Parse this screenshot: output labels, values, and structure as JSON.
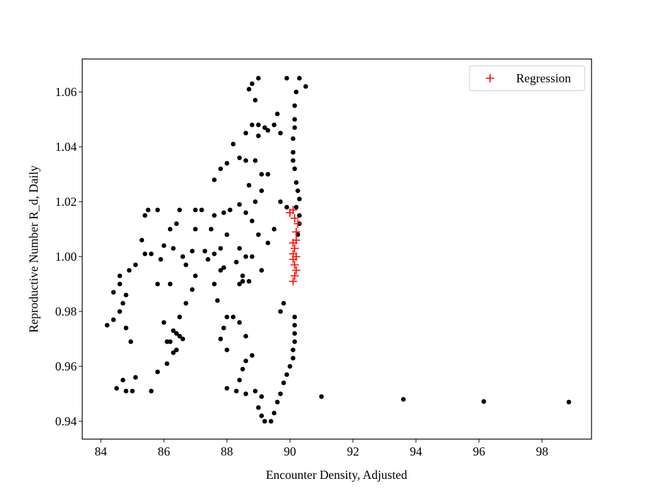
{
  "chart_data": {
    "type": "scatter",
    "x_label": "Encounter Density, Adjusted",
    "y_label": "Reproductive Number R_d, Daily",
    "xlim": [
      83.41,
      99.57
    ],
    "ylim": [
      0.9335,
      1.072
    ],
    "xticks": [
      84,
      86,
      88,
      90,
      92,
      94,
      96,
      98
    ],
    "yticks": [
      0.94,
      0.96,
      0.98,
      {
        "value": 1,
        "label": "1.00"
      },
      1.02,
      1.04,
      1.06
    ],
    "legend": "upper right",
    "series": [
      {
        "color": "#000000",
        "marker": "o",
        "x": [
          91.0,
          93.6,
          96.15,
          98.85,
          89.6,
          89.7,
          89.8,
          89.9,
          90.0,
          90.1,
          90.1,
          90.15,
          90.15,
          90.15,
          90.15,
          89.0,
          89.1,
          89.2,
          89.4,
          89.5,
          88.0,
          88.3,
          88.6,
          88.9,
          89.1,
          88.8,
          88.6,
          88.5,
          88.4,
          88.0,
          87.8,
          87.9,
          88.2,
          88.4,
          88.6,
          84.5,
          84.8,
          85.0,
          84.7,
          85.1,
          85.6,
          85.8,
          86.1,
          86.3,
          86.2,
          86.4,
          86.6,
          86.5,
          86.7,
          86.9,
          87.0,
          86.1,
          86.3,
          86.5,
          84.2,
          84.4,
          84.6,
          84.7,
          84.4,
          84.6,
          84.6,
          84.8,
          84.8,
          84.95,
          84.9,
          85.1,
          85.4,
          85.3,
          85.6,
          85.8,
          85.9,
          86.0,
          85.8,
          85.4,
          85.5,
          86.2,
          86.4,
          86.5,
          86.3,
          86.6,
          86.7,
          87.0,
          87.2,
          87.3,
          87.4,
          87.6,
          87.8,
          87.5,
          87.6,
          87.9,
          88.1,
          88.0,
          87.8,
          88.3,
          88.5,
          88.6,
          88.4,
          88.6,
          88.4,
          88.8,
          87.6,
          87.8,
          88.0,
          88.2,
          88.4,
          88.6,
          88.7,
          88.9,
          89.1,
          89.3,
          88.6,
          88.8,
          89.0,
          89.2,
          89.3,
          89.0,
          88.9,
          89.1,
          89.5,
          89.6,
          89.7,
          88.7,
          88.8,
          89.0,
          88.9,
          89.9,
          90.3,
          90.5,
          90.2,
          90.15,
          90.15,
          90.15,
          90.1,
          90.1,
          90.1,
          90.15,
          90.2,
          90.25,
          90.3,
          90.2,
          90.3,
          90.3,
          90.25,
          89.9,
          89.7,
          89.5,
          89.3,
          89.0,
          88.7,
          88.5,
          87.9,
          87.6,
          87.7,
          88.0,
          88.4,
          88.8,
          89.1,
          89.7,
          89.8,
          87.0,
          86.9,
          86.2,
          86.0,
          86.4
        ],
        "values": [
          0.949,
          0.948,
          0.9472,
          0.947,
          0.947,
          0.95,
          0.954,
          0.957,
          0.96,
          0.963,
          0.966,
          0.969,
          0.972,
          0.975,
          0.978,
          0.945,
          0.942,
          0.94,
          0.94,
          0.943,
          0.952,
          0.951,
          0.95,
          0.951,
          0.949,
          0.964,
          0.962,
          0.959,
          0.955,
          0.966,
          0.97,
          0.974,
          0.978,
          0.976,
          0.971,
          0.952,
          0.951,
          0.951,
          0.955,
          0.956,
          0.951,
          0.958,
          0.961,
          0.965,
          0.969,
          0.972,
          0.97,
          0.978,
          0.983,
          0.988,
          0.993,
          0.969,
          0.973,
          0.971,
          0.975,
          0.977,
          0.98,
          0.983,
          0.987,
          0.99,
          0.993,
          0.986,
          0.974,
          0.969,
          0.995,
          0.997,
          1.001,
          1.006,
          1.001,
          0.99,
          0.999,
          1.004,
          1.017,
          1.015,
          1.017,
          1.01,
          1.012,
          1.017,
          1.003,
          1.0,
          0.997,
          1.017,
          1.017,
          1.002,
          0.999,
          1.001,
          1.003,
          1.01,
          1.015,
          1.016,
          1.017,
          1.008,
          0.995,
          0.998,
          0.993,
          1.0,
          1.003,
          1.016,
          1.019,
          1.013,
          1.028,
          1.032,
          1.034,
          1.041,
          1.036,
          1.035,
          1.026,
          1.02,
          1.024,
          1.03,
          1.045,
          1.048,
          1.048,
          1.047,
          1.046,
          1.044,
          1.035,
          1.03,
          1.048,
          1.052,
          1.045,
          1.061,
          1.063,
          1.065,
          1.057,
          1.065,
          1.065,
          1.062,
          1.06,
          1.055,
          1.05,
          1.047,
          1.043,
          1.038,
          1.035,
          1.032,
          1.027,
          1.024,
          1.021,
          1.018,
          1.015,
          1.012,
          1.008,
          1.018,
          1.02,
          1.01,
          1.005,
          1.008,
          0.991,
          0.991,
          0.996,
          0.99,
          0.984,
          0.978,
          0.99,
          1.0,
          0.995,
          0.98,
          0.983,
          1.01,
          1.002,
          0.99,
          0.976,
          0.966
        ]
      },
      {
        "name": "Regression",
        "color": "#ff0000",
        "marker": "+",
        "x": [
          90.0,
          90.1,
          90.15,
          90.25,
          90.1,
          90.2,
          90.15,
          90.2,
          90.1,
          90.15,
          90.2,
          90.15,
          90.1,
          90.2,
          90.1
        ],
        "values": [
          1.016,
          1.017,
          1.014,
          1.012,
          1.005,
          1.006,
          1.003,
          1.0,
          0.999,
          0.997,
          0.995,
          0.993,
          0.991,
          1.009,
          1.001
        ]
      }
    ]
  }
}
